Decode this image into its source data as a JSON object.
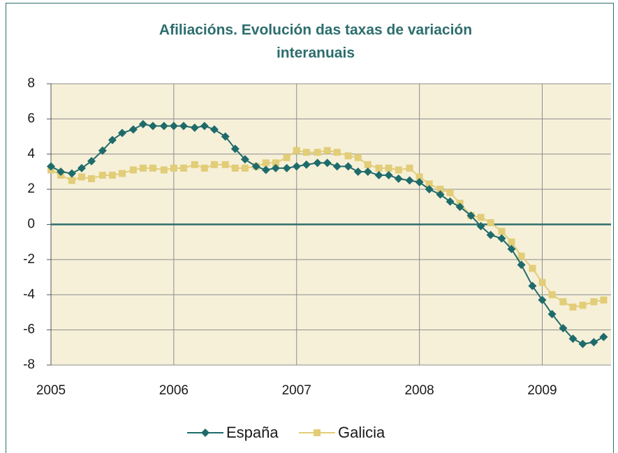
{
  "chart_data": {
    "type": "line",
    "title": [
      "Afiliacións. Evolución das taxas de variación",
      "interanuais"
    ],
    "x": [
      2005,
      2005.08,
      2005.17,
      2005.25,
      2005.33,
      2005.42,
      2005.5,
      2005.58,
      2005.67,
      2005.75,
      2005.83,
      2005.92,
      2006,
      2006.08,
      2006.17,
      2006.25,
      2006.33,
      2006.42,
      2006.5,
      2006.58,
      2006.67,
      2006.75,
      2006.83,
      2006.92,
      2007,
      2007.08,
      2007.17,
      2007.25,
      2007.33,
      2007.42,
      2007.5,
      2007.58,
      2007.67,
      2007.75,
      2007.83,
      2007.92,
      2008,
      2008.08,
      2008.17,
      2008.25,
      2008.33,
      2008.42,
      2008.5,
      2008.58,
      2008.67,
      2008.75,
      2008.83,
      2008.92,
      2009,
      2009.08,
      2009.17,
      2009.25,
      2009.33,
      2009.42,
      2009.5
    ],
    "series": [
      {
        "name": "España",
        "color": "#1f6b6b",
        "marker": "diamond",
        "values": [
          3.3,
          3.0,
          2.9,
          3.2,
          3.6,
          4.2,
          4.8,
          5.2,
          5.4,
          5.7,
          5.6,
          5.6,
          5.6,
          5.6,
          5.5,
          5.6,
          5.4,
          5.0,
          4.3,
          3.7,
          3.3,
          3.1,
          3.2,
          3.2,
          3.3,
          3.4,
          3.5,
          3.5,
          3.3,
          3.3,
          3.0,
          3.0,
          2.8,
          2.8,
          2.6,
          2.5,
          2.4,
          2.0,
          1.7,
          1.3,
          1.0,
          0.5,
          -0.1,
          -0.6,
          -0.8,
          -1.4,
          -2.3,
          -3.5,
          -4.3,
          -5.1,
          -5.9,
          -6.5,
          -6.8,
          -6.7,
          -6.4
        ]
      },
      {
        "name": "Galicia",
        "color": "#e2cd78",
        "marker": "square",
        "values": [
          3.1,
          2.8,
          2.5,
          2.7,
          2.6,
          2.8,
          2.8,
          2.9,
          3.1,
          3.2,
          3.2,
          3.1,
          3.2,
          3.2,
          3.4,
          3.2,
          3.4,
          3.4,
          3.2,
          3.2,
          3.3,
          3.5,
          3.5,
          3.8,
          4.2,
          4.1,
          4.1,
          4.2,
          4.1,
          3.9,
          3.8,
          3.4,
          3.2,
          3.2,
          3.1,
          3.2,
          2.7,
          2.3,
          2.0,
          1.8,
          1.2,
          0.5,
          0.4,
          0.1,
          -0.4,
          -1.0,
          -1.8,
          -2.5,
          -3.3,
          -4.0,
          -4.4,
          -4.7,
          -4.6,
          -4.4,
          -4.3
        ]
      }
    ],
    "xlim": [
      2005,
      2009.56
    ],
    "xticks": [
      2005,
      2006,
      2007,
      2008,
      2009
    ],
    "ylim": [
      -8,
      8
    ],
    "yticks": [
      -8,
      -6,
      -4,
      -2,
      0,
      2,
      4,
      6,
      8
    ],
    "grid": true,
    "legend": "bottom"
  }
}
